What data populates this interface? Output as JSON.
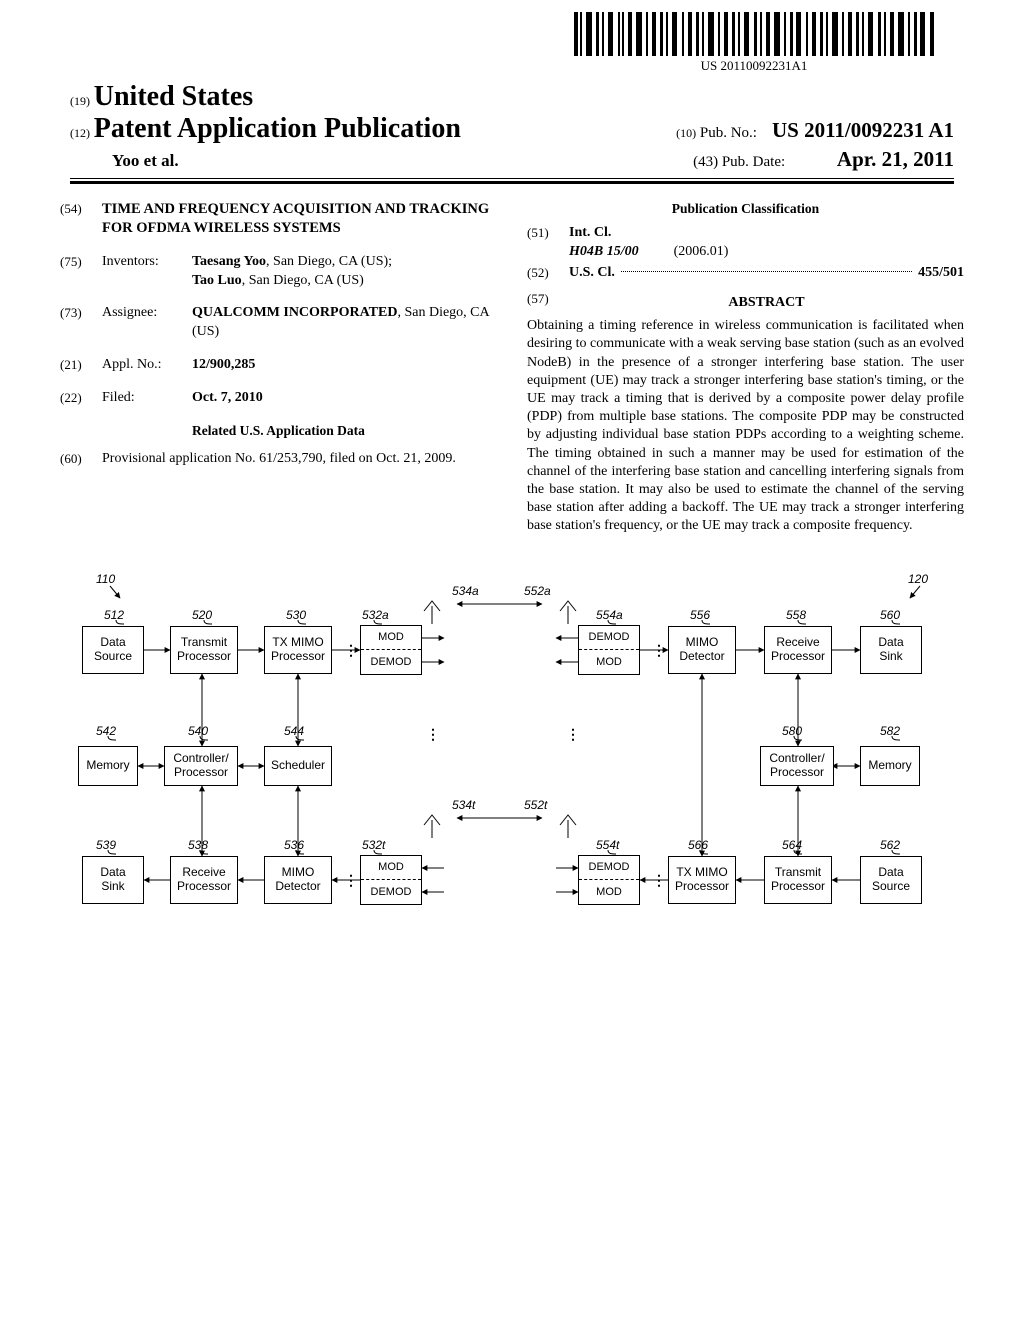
{
  "barcode_text": "US 20110092231A1",
  "header": {
    "country_num": "(19)",
    "country": "United States",
    "pub_type_num": "(12)",
    "pub_type": "Patent Application Publication",
    "authors": "Yoo et al.",
    "pubno_num": "(10)",
    "pubno_label": "Pub. No.:",
    "pubno": "US 2011/0092231 A1",
    "pubdate_num": "(43)",
    "pubdate_label": "Pub. Date:",
    "pubdate": "Apr. 21, 2011"
  },
  "left": {
    "title_code": "(54)",
    "title": "TIME AND FREQUENCY ACQUISITION AND TRACKING FOR OFDMA WIRELESS SYSTEMS",
    "inventors_code": "(75)",
    "inventors_label": "Inventors:",
    "inventor1": "Taesang Yoo",
    "inventor1_loc": ", San Diego, CA (US);",
    "inventor2": "Tao Luo",
    "inventor2_loc": ", San Diego, CA (US)",
    "assignee_code": "(73)",
    "assignee_label": "Assignee:",
    "assignee_name": "QUALCOMM INCORPORATED",
    "assignee_loc": ", San Diego, CA (US)",
    "applno_code": "(21)",
    "applno_label": "Appl. No.:",
    "applno": "12/900,285",
    "filed_code": "(22)",
    "filed_label": "Filed:",
    "filed": "Oct. 7, 2010",
    "related_heading": "Related U.S. Application Data",
    "prov_code": "(60)",
    "prov_text": "Provisional application No. 61/253,790, filed on Oct. 21, 2009."
  },
  "right": {
    "classif_heading": "Publication Classification",
    "intcl_code": "(51)",
    "intcl_label": "Int. Cl.",
    "intcl_class": "H04B 15/00",
    "intcl_date": "(2006.01)",
    "uscl_code": "(52)",
    "uscl_label": "U.S. Cl.",
    "uscl_val": "455/501",
    "abstract_code": "(57)",
    "abstract_heading": "ABSTRACT",
    "abstract": "Obtaining a timing reference in wireless communication is facilitated when desiring to communicate with a weak serving base station (such as an evolved NodeB) in the presence of a stronger interfering base station. The user equipment (UE) may track a stronger interfering base station's timing, or the UE may track a timing that is derived by a composite power delay profile (PDP) from multiple base stations. The composite PDP may be constructed by adjusting individual base station PDPs according to a weighting scheme. The timing obtained in such a manner may be used for estimation of the channel of the interfering base station and cancelling interfering signals from the base station. It may also be used to estimate the channel of the serving base station after adding a backoff. The UE may track a stronger interfering base station's frequency, or the UE may track a composite frequency."
  },
  "figure": {
    "ref110": "110",
    "ref120": "120",
    "ref512": "512",
    "ref520": "520",
    "ref530": "530",
    "ref532a": "532a",
    "ref534a": "534a",
    "ref552a": "552a",
    "ref554a": "554a",
    "ref556": "556",
    "ref558": "558",
    "ref560": "560",
    "ref542": "542",
    "ref540": "540",
    "ref544": "544",
    "ref580": "580",
    "ref582": "582",
    "ref534t": "534t",
    "ref552t": "552t",
    "ref539": "539",
    "ref538": "538",
    "ref536": "536",
    "ref532t": "532t",
    "ref554t": "554t",
    "ref566": "566",
    "ref564": "564",
    "ref562": "562",
    "b512": "Data\nSource",
    "b520": "Transmit\nProcessor",
    "b530": "TX MIMO\nProcessor",
    "b556": "MIMO\nDetector",
    "b558": "Receive\nProcessor",
    "b560": "Data\nSink",
    "b542": "Memory",
    "b540": "Controller/\nProcessor",
    "b544": "Scheduler",
    "b580": "Controller/\nProcessor",
    "b582": "Memory",
    "b539": "Data\nSink",
    "b538": "Receive\nProcessor",
    "b536": "MIMO\nDetector",
    "b566": "TX MIMO\nProcessor",
    "b564": "Transmit\nProcessor",
    "b562": "Data\nSource",
    "mod": "MOD",
    "demod": "DEMOD"
  }
}
